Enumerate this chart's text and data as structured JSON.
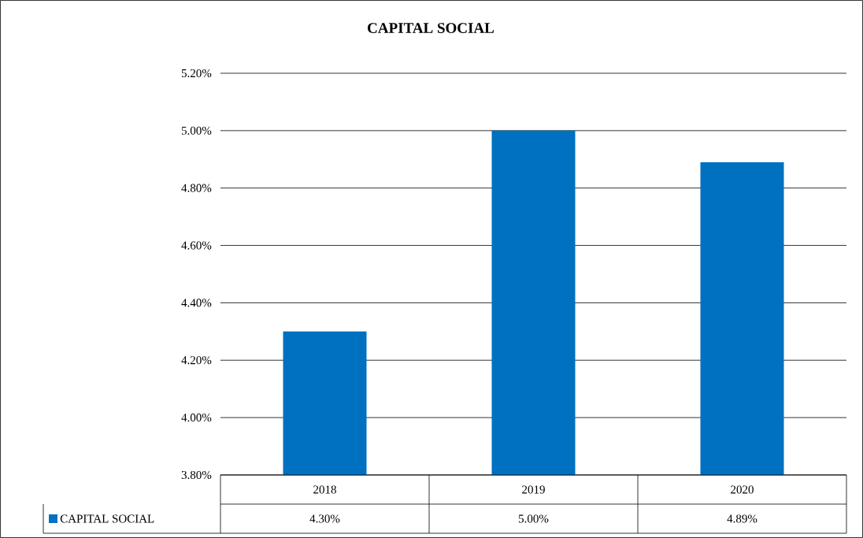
{
  "chart_data": {
    "type": "bar",
    "title": "CAPITAL SOCIAL",
    "categories": [
      "2018",
      "2019",
      "2020"
    ],
    "series": [
      {
        "name": "CAPITAL SOCIAL",
        "color": "#0070c0",
        "values": [
          4.3,
          5.0,
          4.89
        ],
        "value_labels": [
          "4.30%",
          "5.00%",
          "4.89%"
        ]
      }
    ],
    "ylim": [
      3.8,
      5.2
    ],
    "yticks": [
      {
        "value": 3.8,
        "label": "3.80%"
      },
      {
        "value": 4.0,
        "label": "4.00%"
      },
      {
        "value": 4.2,
        "label": "4.20%"
      },
      {
        "value": 4.4,
        "label": "4.40%"
      },
      {
        "value": 4.6,
        "label": "4.60%"
      },
      {
        "value": 4.8,
        "label": "4.80%"
      },
      {
        "value": 5.0,
        "label": "5.00%"
      },
      {
        "value": 5.2,
        "label": "5.20%"
      }
    ],
    "grid": "y",
    "legend": "bottom"
  }
}
